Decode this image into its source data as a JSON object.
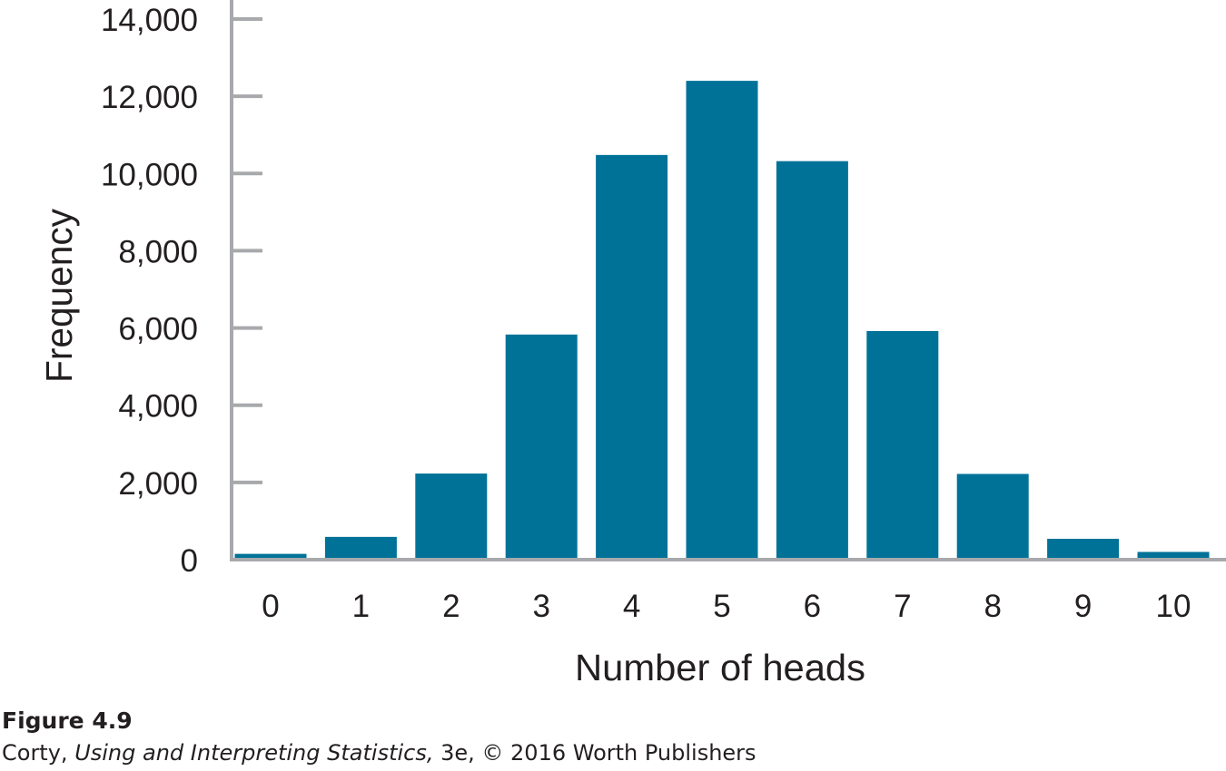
{
  "chart_data": {
    "type": "bar",
    "categories": [
      "0",
      "1",
      "2",
      "3",
      "4",
      "5",
      "6",
      "7",
      "8",
      "9",
      "10"
    ],
    "values": [
      150,
      590,
      2230,
      5830,
      10480,
      12400,
      10320,
      5920,
      2220,
      540,
      200
    ],
    "xlabel": "Number of heads",
    "ylabel": "Frequency",
    "ylim": [
      0,
      14000
    ],
    "yticks": [
      0,
      2000,
      4000,
      6000,
      8000,
      10000,
      12000,
      14000
    ],
    "ytick_labels": [
      "0",
      "2,000",
      "4,000",
      "6,000",
      "8,000",
      "10,000",
      "12,000",
      "14,000"
    ],
    "grid": false,
    "bar_color": "#007298",
    "axis_color": "#a7a9ac"
  },
  "figure": {
    "label": "Figure 4.9",
    "credit_author": "Corty, ",
    "credit_title": "Using and Interpreting Statistics,",
    "credit_rest": " 3e, © 2016 Worth Publishers"
  }
}
